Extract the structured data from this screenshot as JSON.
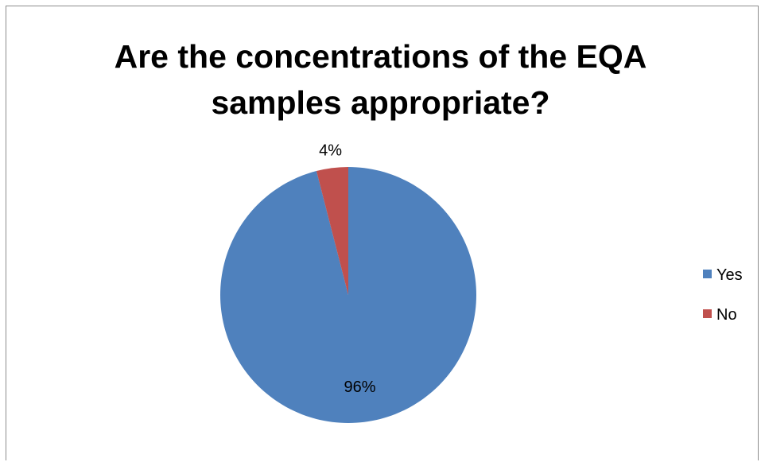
{
  "chart_data": {
    "type": "pie",
    "title_line1": "Are the concentrations of the EQA",
    "title_line2": "samples appropriate?",
    "slices": [
      {
        "label": "Yes",
        "value": 96,
        "data_label": "96%",
        "color": "#4F81BD"
      },
      {
        "label": "No",
        "value": 4,
        "data_label": "4%",
        "color": "#C0504D"
      }
    ],
    "legend_position": "right",
    "start_angle_deg": 0,
    "direction": "clockwise"
  }
}
